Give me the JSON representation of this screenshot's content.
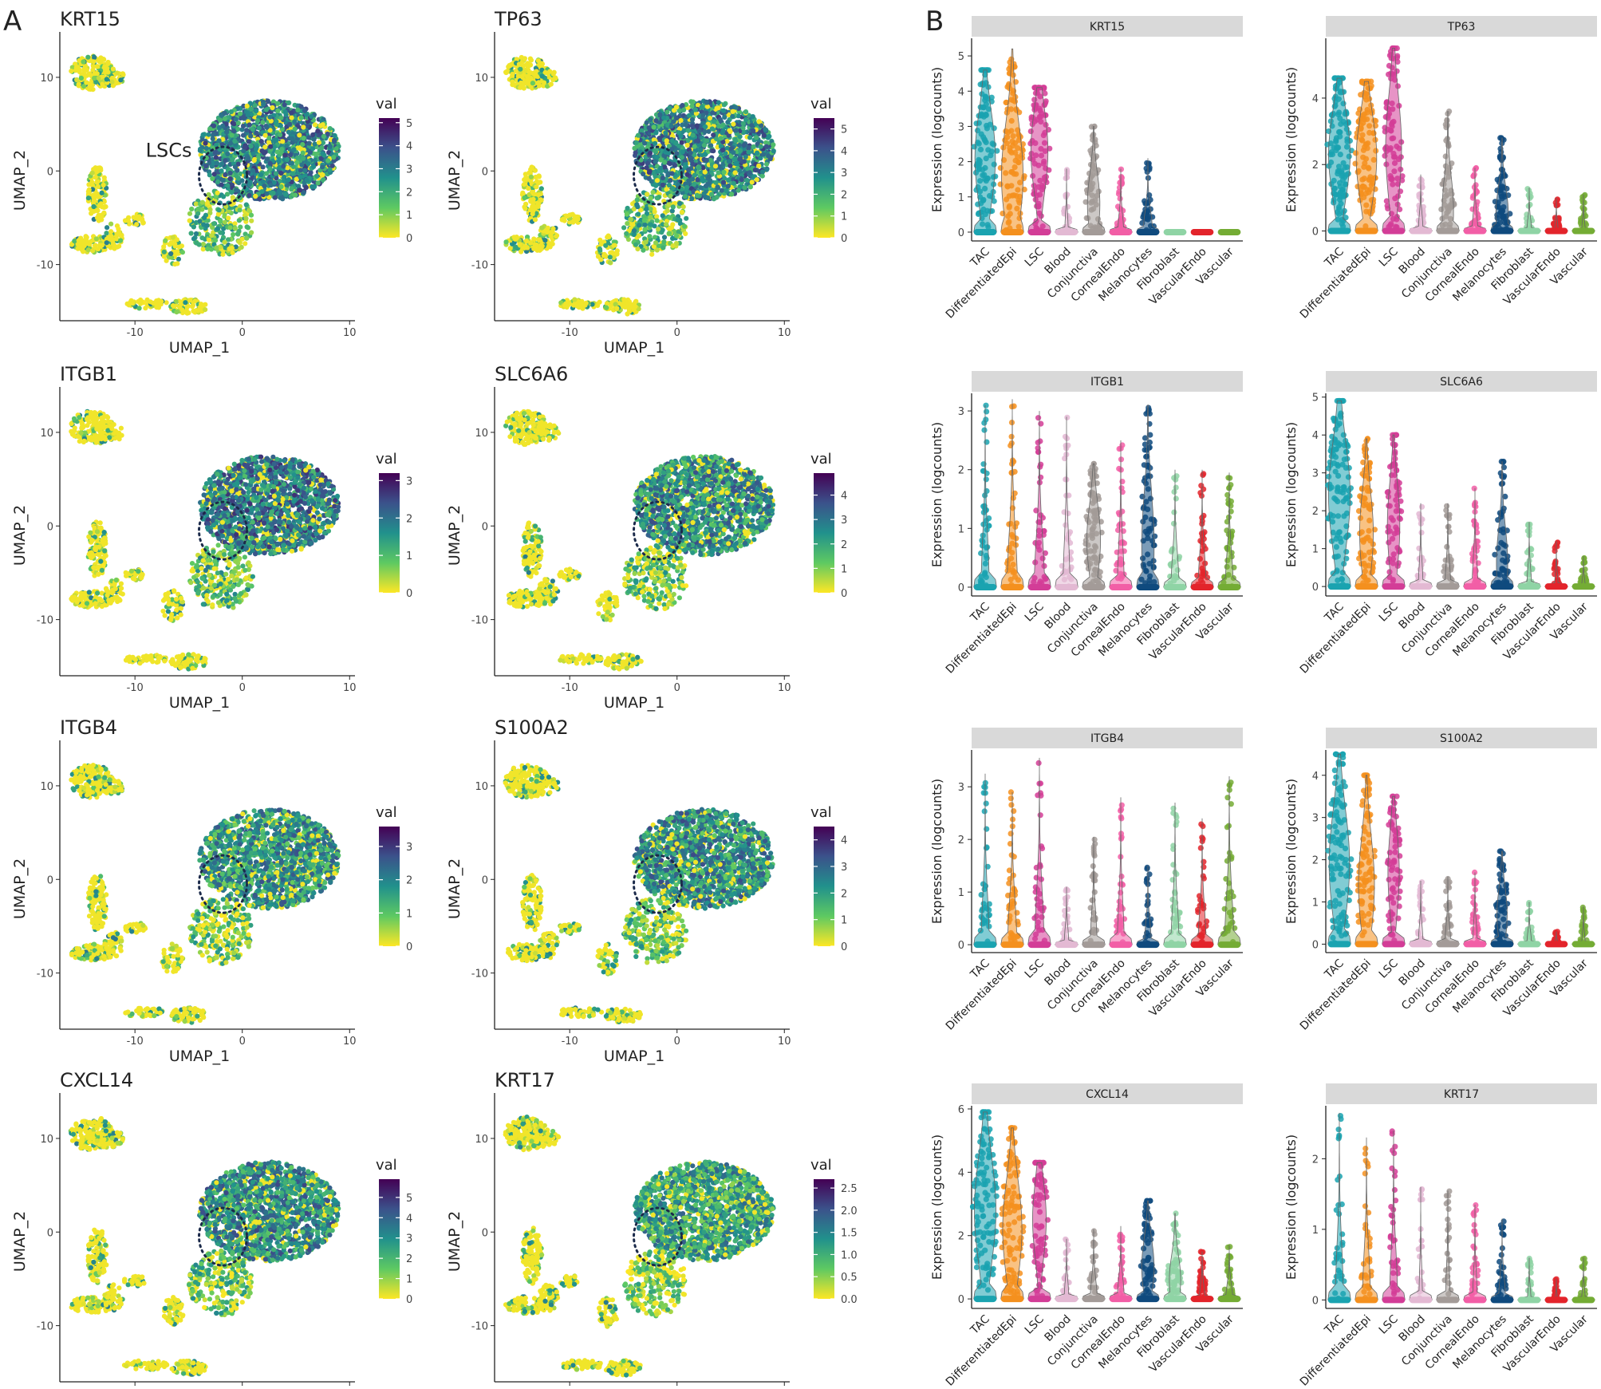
{
  "panel_labels": [
    "A",
    "B"
  ],
  "annotation": "LSCs",
  "chart_data": [
    {
      "type": "scatter",
      "panel": "A",
      "title": "KRT15",
      "xlabel": "UMAP_1",
      "ylabel": "UMAP_2",
      "xticks": [
        -10,
        0,
        10
      ],
      "yticks": [
        -10,
        0,
        10
      ],
      "legend_title": "val",
      "legend_ticks": [
        0,
        1,
        2,
        3,
        4,
        5
      ],
      "legend_max": 5.2,
      "colormap": [
        "#fde725",
        "#5ec962",
        "#21918c",
        "#3b528b",
        "#440154"
      ],
      "main_cluster_level": 0.55,
      "annotation_visible": true
    },
    {
      "type": "scatter",
      "panel": "A",
      "title": "TP63",
      "xlabel": "UMAP_1",
      "ylabel": "UMAP_2",
      "xticks": [
        -10,
        0,
        10
      ],
      "yticks": [
        -10,
        0,
        10
      ],
      "legend_title": "val",
      "legend_ticks": [
        0,
        1,
        2,
        3,
        4,
        5
      ],
      "legend_max": 5.5,
      "colormap": [
        "#fde725",
        "#5ec962",
        "#21918c",
        "#3b528b",
        "#440154"
      ],
      "main_cluster_level": 0.55,
      "annotation_visible": false
    },
    {
      "type": "scatter",
      "panel": "A",
      "title": "ITGB1",
      "xlabel": "UMAP_1",
      "ylabel": "UMAP_2",
      "xticks": [
        -10,
        0,
        10
      ],
      "yticks": [
        -10,
        0,
        10
      ],
      "legend_title": "val",
      "legend_ticks": [
        0,
        1,
        2,
        3
      ],
      "legend_max": 3.2,
      "colormap": [
        "#fde725",
        "#5ec962",
        "#21918c",
        "#3b528b",
        "#440154"
      ],
      "main_cluster_level": 0.58,
      "annotation_visible": false
    },
    {
      "type": "scatter",
      "panel": "A",
      "title": "SLC6A6",
      "xlabel": "UMAP_1",
      "ylabel": "UMAP_2",
      "xticks": [
        -10,
        0,
        10
      ],
      "yticks": [
        -10,
        0,
        10
      ],
      "legend_title": "val",
      "legend_ticks": [
        0,
        1,
        2,
        3,
        4
      ],
      "legend_max": 4.9,
      "colormap": [
        "#fde725",
        "#5ec962",
        "#21918c",
        "#3b528b",
        "#440154"
      ],
      "main_cluster_level": 0.5,
      "annotation_visible": false
    },
    {
      "type": "scatter",
      "panel": "A",
      "title": "ITGB4",
      "xlabel": "UMAP_1",
      "ylabel": "UMAP_2",
      "xticks": [
        -10,
        0,
        10
      ],
      "yticks": [
        -10,
        0,
        10
      ],
      "legend_title": "val",
      "legend_ticks": [
        0,
        1,
        2,
        3
      ],
      "legend_max": 3.6,
      "colormap": [
        "#fde725",
        "#5ec962",
        "#21918c",
        "#3b528b",
        "#440154"
      ],
      "main_cluster_level": 0.48,
      "annotation_visible": false
    },
    {
      "type": "scatter",
      "panel": "A",
      "title": "S100A2",
      "xlabel": "UMAP_1",
      "ylabel": "UMAP_2",
      "xticks": [
        -10,
        0,
        10
      ],
      "yticks": [
        -10,
        0,
        10
      ],
      "legend_title": "val",
      "legend_ticks": [
        0,
        1,
        2,
        3,
        4
      ],
      "legend_max": 4.5,
      "colormap": [
        "#fde725",
        "#5ec962",
        "#21918c",
        "#3b528b",
        "#440154"
      ],
      "main_cluster_level": 0.5,
      "annotation_visible": false
    },
    {
      "type": "scatter",
      "panel": "A",
      "title": "CXCL14",
      "xlabel": "UMAP_1",
      "ylabel": "UMAP_2",
      "xticks": [
        -10,
        0,
        10
      ],
      "yticks": [
        -10,
        0,
        10
      ],
      "legend_title": "val",
      "legend_ticks": [
        0,
        1,
        2,
        3,
        4,
        5
      ],
      "legend_max": 5.9,
      "colormap": [
        "#fde725",
        "#5ec962",
        "#21918c",
        "#3b528b",
        "#440154"
      ],
      "main_cluster_level": 0.52,
      "annotation_visible": false
    },
    {
      "type": "scatter",
      "panel": "A",
      "title": "KRT17",
      "xlabel": "UMAP_1",
      "ylabel": "UMAP_2",
      "xticks": [
        -10,
        0,
        10
      ],
      "yticks": [
        -10,
        0,
        10
      ],
      "legend_title": "val",
      "legend_ticks": [
        "0.0",
        "0.5",
        "1.0",
        "1.5",
        "2.0",
        "2.5"
      ],
      "legend_max": 2.7,
      "colormap": [
        "#fde725",
        "#5ec962",
        "#21918c",
        "#3b528b",
        "#440154"
      ],
      "main_cluster_level": 0.42,
      "annotation_visible": false
    },
    {
      "type": "violin",
      "panel": "B",
      "title": "KRT15",
      "ylabel": "Expression (logcounts)",
      "categories": [
        "TAC",
        "DifferentiatedEpi",
        "LSC",
        "Blood",
        "Conjunctiva",
        "CornealEndo",
        "Melanocytes",
        "Fibroblast",
        "VascularEndo",
        "Vascular"
      ],
      "colors": [
        "#1aa3b0",
        "#f4901e",
        "#d33d97",
        "#e3b9d3",
        "#a39b98",
        "#f25ea6",
        "#0f4a7e",
        "#8fd4a5",
        "#e3242b",
        "#74ac34"
      ],
      "yticks": [
        0,
        1,
        2,
        3,
        4,
        5
      ],
      "ylim": [
        -0.25,
        5.5
      ],
      "max": [
        4.6,
        5.2,
        4.1,
        1.8,
        3.0,
        1.8,
        2.1,
        0.0,
        0.0,
        0.0
      ],
      "median": [
        2.1,
        1.6,
        2.3,
        0.0,
        0.8,
        0.0,
        0.0,
        0.0,
        0.0,
        0.0
      ],
      "spread": [
        0.9,
        0.95,
        0.75,
        0.15,
        0.55,
        0.25,
        0.4,
        0.1,
        0.1,
        0.1
      ]
    },
    {
      "type": "violin",
      "panel": "B",
      "title": "TP63",
      "ylabel": "Expression (logcounts)",
      "categories": [
        "TAC",
        "DifferentiatedEpi",
        "LSC",
        "Blood",
        "Conjunctiva",
        "CornealEndo",
        "Melanocytes",
        "Fibroblast",
        "VascularEndo",
        "Vascular"
      ],
      "colors": [
        "#1aa3b0",
        "#f4901e",
        "#d33d97",
        "#e3b9d3",
        "#a39b98",
        "#f25ea6",
        "#0f4a7e",
        "#8fd4a5",
        "#e3242b",
        "#74ac34"
      ],
      "yticks": [
        0,
        2,
        4
      ],
      "ylim": [
        -0.3,
        5.8
      ],
      "max": [
        4.6,
        4.5,
        5.5,
        1.7,
        3.6,
        1.9,
        2.8,
        1.3,
        1.0,
        1.1
      ],
      "median": [
        2.3,
        2.2,
        2.5,
        0.0,
        0.6,
        0.0,
        0.5,
        0.0,
        0.0,
        0.0
      ],
      "spread": [
        0.95,
        0.9,
        0.7,
        0.2,
        0.5,
        0.25,
        0.55,
        0.2,
        0.15,
        0.15
      ]
    },
    {
      "type": "violin",
      "panel": "B",
      "title": "ITGB1",
      "ylabel": "Expression (logcounts)",
      "categories": [
        "TAC",
        "DifferentiatedEpi",
        "LSC",
        "Blood",
        "Conjunctiva",
        "CornealEndo",
        "Melanocytes",
        "Fibroblast",
        "VascularEndo",
        "Vascular"
      ],
      "colors": [
        "#1aa3b0",
        "#f4901e",
        "#d33d97",
        "#e3b9d3",
        "#a39b98",
        "#f25ea6",
        "#0f4a7e",
        "#8fd4a5",
        "#e3242b",
        "#74ac34"
      ],
      "yticks": [
        0,
        1,
        2,
        3
      ],
      "ylim": [
        -0.15,
        3.3
      ],
      "max": [
        3.1,
        3.2,
        3.0,
        2.9,
        2.1,
        2.5,
        3.1,
        2.0,
        2.0,
        1.95
      ],
      "median": [
        0.0,
        0.0,
        0.0,
        0.0,
        0.8,
        0.0,
        0.7,
        0.0,
        0.0,
        0.0
      ],
      "spread": [
        0.35,
        0.45,
        0.45,
        0.3,
        0.6,
        0.3,
        0.55,
        0.35,
        0.35,
        0.35
      ]
    },
    {
      "type": "violin",
      "panel": "B",
      "title": "SLC6A6",
      "ylabel": "Expression (logcounts)",
      "categories": [
        "TAC",
        "DifferentiatedEpi",
        "LSC",
        "Blood",
        "Conjunctiva",
        "CornealEndo",
        "Melanocytes",
        "Fibroblast",
        "VascularEndo",
        "Vascular"
      ],
      "colors": [
        "#1aa3b0",
        "#f4901e",
        "#d33d97",
        "#e3b9d3",
        "#a39b98",
        "#f25ea6",
        "#0f4a7e",
        "#8fd4a5",
        "#e3242b",
        "#74ac34"
      ],
      "yticks": [
        0,
        1,
        2,
        3,
        4,
        5
      ],
      "ylim": [
        -0.25,
        5.1
      ],
      "max": [
        4.9,
        3.9,
        4.0,
        2.2,
        2.2,
        2.6,
        3.3,
        1.7,
        1.2,
        0.8
      ],
      "median": [
        2.4,
        1.4,
        1.6,
        0.0,
        0.0,
        0.0,
        0.6,
        0.0,
        0.0,
        0.0
      ],
      "spread": [
        0.95,
        0.6,
        0.55,
        0.2,
        0.25,
        0.25,
        0.5,
        0.2,
        0.15,
        0.15
      ]
    },
    {
      "type": "violin",
      "panel": "B",
      "title": "ITGB4",
      "ylabel": "Expression (logcounts)",
      "categories": [
        "TAC",
        "DifferentiatedEpi",
        "LSC",
        "Blood",
        "Conjunctiva",
        "CornealEndo",
        "Melanocytes",
        "Fibroblast",
        "VascularEndo",
        "Vascular"
      ],
      "colors": [
        "#1aa3b0",
        "#f4901e",
        "#d33d97",
        "#e3b9d3",
        "#a39b98",
        "#f25ea6",
        "#0f4a7e",
        "#8fd4a5",
        "#e3242b",
        "#74ac34"
      ],
      "yticks": [
        0,
        1,
        2,
        3
      ],
      "ylim": [
        -0.15,
        3.7
      ],
      "max": [
        3.25,
        2.9,
        3.55,
        1.1,
        2.05,
        2.8,
        1.5,
        2.7,
        2.4,
        3.2
      ],
      "median": [
        0.0,
        0.0,
        0.0,
        0.0,
        0.0,
        0.0,
        0.0,
        0.0,
        0.0,
        0.0
      ],
      "spread": [
        0.35,
        0.4,
        0.4,
        0.2,
        0.3,
        0.3,
        0.3,
        0.35,
        0.35,
        0.4
      ]
    },
    {
      "type": "violin",
      "panel": "B",
      "title": "S100A2",
      "ylabel": "Expression (logcounts)",
      "categories": [
        "TAC",
        "DifferentiatedEpi",
        "LSC",
        "Blood",
        "Conjunctiva",
        "CornealEndo",
        "Melanocytes",
        "Fibroblast",
        "VascularEndo",
        "Vascular"
      ],
      "colors": [
        "#1aa3b0",
        "#f4901e",
        "#d33d97",
        "#e3b9d3",
        "#a39b98",
        "#f25ea6",
        "#0f4a7e",
        "#8fd4a5",
        "#e3242b",
        "#74ac34"
      ],
      "yticks": [
        0,
        1,
        2,
        3,
        4
      ],
      "ylim": [
        -0.2,
        4.6
      ],
      "max": [
        4.5,
        4.0,
        3.5,
        1.5,
        1.6,
        1.7,
        2.2,
        1.0,
        0.3,
        0.9
      ],
      "median": [
        1.9,
        1.4,
        1.7,
        0.0,
        0.0,
        0.0,
        0.7,
        0.0,
        0.0,
        0.0
      ],
      "spread": [
        0.9,
        0.7,
        0.5,
        0.2,
        0.25,
        0.2,
        0.45,
        0.2,
        0.15,
        0.15
      ]
    },
    {
      "type": "violin",
      "panel": "B",
      "title": "CXCL14",
      "ylabel": "Expression (logcounts)",
      "categories": [
        "TAC",
        "DifferentiatedEpi",
        "LSC",
        "Blood",
        "Conjunctiva",
        "CornealEndo",
        "Melanocytes",
        "Fibroblast",
        "VascularEndo",
        "Vascular"
      ],
      "colors": [
        "#1aa3b0",
        "#f4901e",
        "#d33d97",
        "#e3b9d3",
        "#a39b98",
        "#f25ea6",
        "#0f4a7e",
        "#8fd4a5",
        "#e3242b",
        "#74ac34"
      ],
      "yticks": [
        0,
        2,
        4,
        6
      ],
      "ylim": [
        -0.3,
        6.1
      ],
      "max": [
        5.9,
        5.4,
        4.3,
        1.9,
        2.2,
        2.3,
        3.1,
        2.7,
        1.5,
        1.7
      ],
      "median": [
        2.8,
        2.2,
        2.5,
        0.0,
        0.0,
        0.0,
        1.0,
        0.6,
        0.0,
        0.0
      ],
      "spread": [
        0.95,
        0.85,
        0.6,
        0.2,
        0.3,
        0.3,
        0.55,
        0.5,
        0.25,
        0.3
      ]
    },
    {
      "type": "violin",
      "panel": "B",
      "title": "KRT17",
      "ylabel": "Expression (logcounts)",
      "categories": [
        "TAC",
        "DifferentiatedEpi",
        "LSC",
        "Blood",
        "Conjunctiva",
        "CornealEndo",
        "Melanocytes",
        "Fibroblast",
        "VascularEndo",
        "Vascular"
      ],
      "colors": [
        "#1aa3b0",
        "#f4901e",
        "#d33d97",
        "#e3b9d3",
        "#a39b98",
        "#f25ea6",
        "#0f4a7e",
        "#8fd4a5",
        "#e3242b",
        "#74ac34"
      ],
      "yticks": [
        0,
        1,
        2
      ],
      "ylim": [
        -0.12,
        2.75
      ],
      "max": [
        2.65,
        2.3,
        2.4,
        1.6,
        1.55,
        1.35,
        1.15,
        0.6,
        0.3,
        0.6
      ],
      "median": [
        0.0,
        0.0,
        0.0,
        0.0,
        0.0,
        0.0,
        0.0,
        0.0,
        0.0,
        0.0
      ],
      "spread": [
        0.35,
        0.35,
        0.35,
        0.15,
        0.2,
        0.2,
        0.3,
        0.15,
        0.1,
        0.15
      ]
    }
  ]
}
